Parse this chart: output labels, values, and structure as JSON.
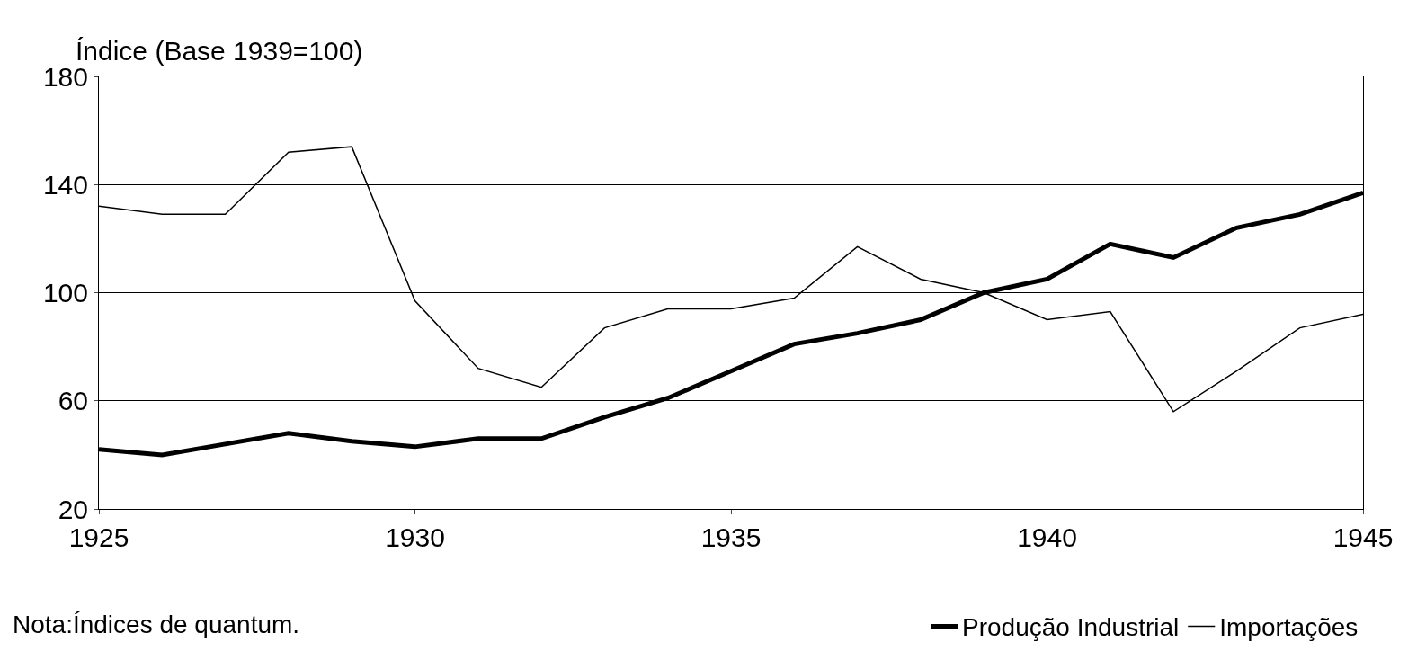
{
  "chart_data": {
    "type": "line",
    "ylabel": "Índice (Base 1939=100)",
    "x": [
      1925,
      1926,
      1927,
      1928,
      1929,
      1930,
      1931,
      1932,
      1933,
      1934,
      1935,
      1936,
      1937,
      1938,
      1939,
      1940,
      1941,
      1942,
      1943,
      1944,
      1945
    ],
    "series": [
      {
        "name": "Produção Industrial",
        "color": "#000000",
        "values": [
          42,
          40,
          44,
          48,
          45,
          43,
          46,
          46,
          54,
          61,
          71,
          81,
          85,
          90,
          100,
          105,
          118,
          113,
          124,
          129,
          137
        ]
      },
      {
        "name": "Importações",
        "color": "#000000",
        "values": [
          132,
          129,
          129,
          152,
          154,
          97,
          72,
          65,
          87,
          94,
          94,
          98,
          117,
          105,
          100,
          90,
          93,
          56,
          71,
          87,
          92
        ]
      }
    ],
    "xlim": [
      1925,
      1945
    ],
    "xticks": [
      1925,
      1930,
      1935,
      1940,
      1945
    ],
    "ylim": [
      20,
      180
    ],
    "yticks": [
      20,
      60,
      100,
      140,
      180
    ],
    "grid": "y",
    "legend": "bottom right",
    "marker": "none",
    "annotations": [
      "Nota:Índices de quantum."
    ]
  }
}
